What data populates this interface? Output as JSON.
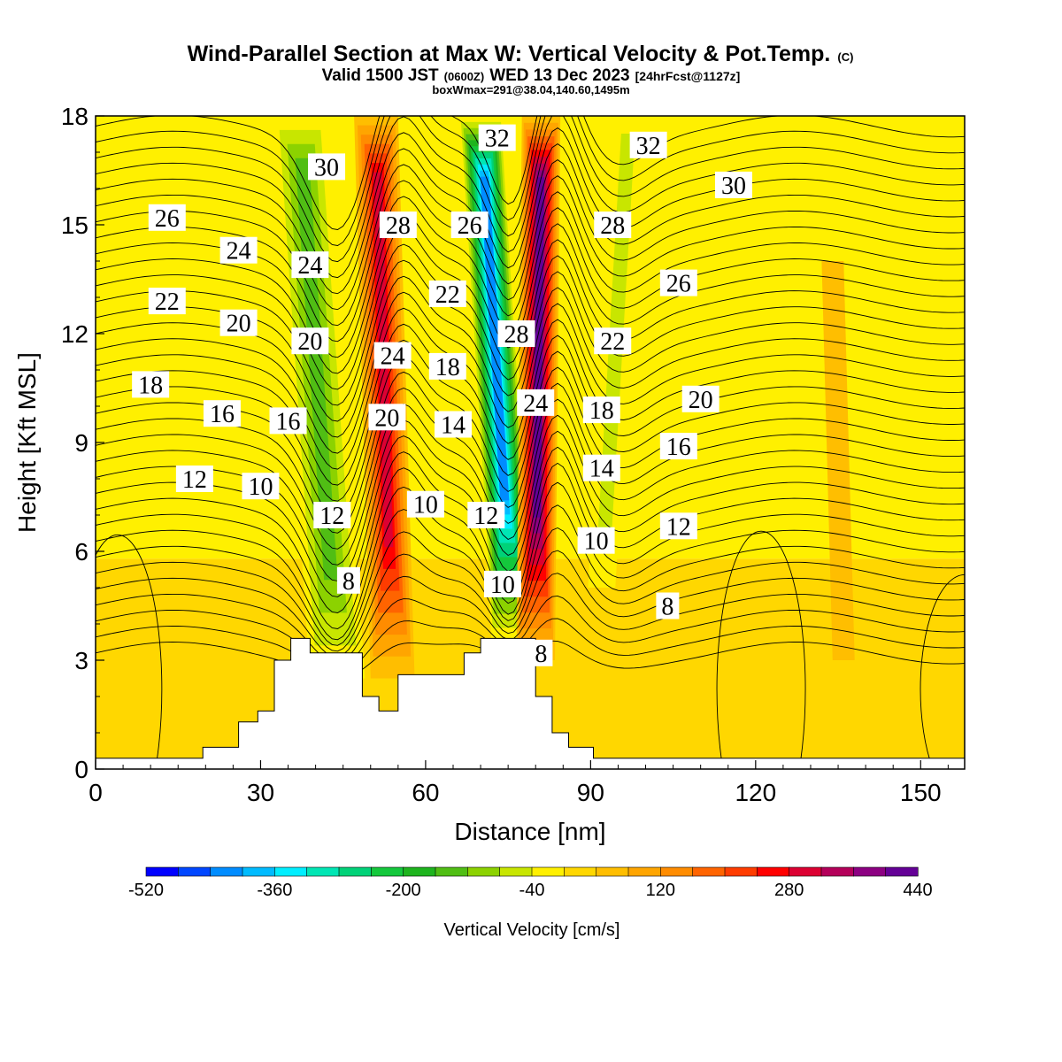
{
  "header": {
    "title_main": "Wind-Parallel Section at Max W: Vertical Velocity & Pot.Temp.",
    "title_mark": "(C)",
    "subtitle_a": "Valid 1500 JST",
    "subtitle_b": "(0600Z)",
    "subtitle_c": "WED 13 Dec 2023",
    "subtitle_d": "[24hrFcst@1127z]",
    "subtitle_line3": "boxWmax=291@38.04,140.60,1495m"
  },
  "chart_data": {
    "type": "heatmap",
    "title": "Wind-Parallel Section at Max W: Vertical Velocity & Pot.Temp.",
    "xlabel": "Distance [nm]",
    "ylabel": "Height [Kft MSL]",
    "xlim": [
      0,
      158
    ],
    "ylim": [
      0,
      18
    ],
    "x_ticks": [
      "0",
      "30",
      "60",
      "90",
      "120",
      "150"
    ],
    "y_ticks": [
      "0",
      "3",
      "6",
      "9",
      "12",
      "15",
      "18"
    ],
    "x_tick_values": [
      0,
      30,
      60,
      90,
      120,
      150
    ],
    "y_tick_values": [
      0,
      3,
      6,
      9,
      12,
      15,
      18
    ],
    "grid": false,
    "colorbar": {
      "label": "Vertical Velocity [cm/s]",
      "tick_labels": [
        "-520",
        "-360",
        "-200",
        "-40",
        "120",
        "280",
        "440"
      ],
      "tick_values": [
        -520,
        -360,
        -200,
        -40,
        120,
        280,
        440
      ],
      "min": -520,
      "max": 440,
      "step": 40,
      "colors": [
        "#0000ff",
        "#0046ff",
        "#008cff",
        "#00bbff",
        "#00eeff",
        "#00e6b4",
        "#00d278",
        "#14c83c",
        "#1eb41e",
        "#50be14",
        "#8cd200",
        "#c8e600",
        "#fff000",
        "#ffd700",
        "#ffbe00",
        "#ffa500",
        "#ff8c00",
        "#ff6400",
        "#ff3c00",
        "#ff0000",
        "#dc0032",
        "#b4005a",
        "#8c0082",
        "#640096"
      ]
    },
    "terrain_profile": {
      "x": [
        0,
        19.5,
        19.5,
        26,
        26,
        29.5,
        29.5,
        32.5,
        32.5,
        35.5,
        35.5,
        39,
        39,
        48.5,
        48.5,
        51.5,
        51.5,
        55,
        55,
        67,
        67,
        70,
        70,
        80,
        80,
        83,
        83,
        86,
        86,
        90.5,
        90.5,
        158
      ],
      "height_kft": [
        0.3,
        0.3,
        0.6,
        0.6,
        1.3,
        1.3,
        1.6,
        1.6,
        3.0,
        3.0,
        3.6,
        3.6,
        3.2,
        3.2,
        2.0,
        2.0,
        1.6,
        1.6,
        2.6,
        2.6,
        3.2,
        3.2,
        3.6,
        3.6,
        2.0,
        2.0,
        1.0,
        1.0,
        0.6,
        0.6,
        0.3,
        0.3
      ]
    },
    "w_background": [
      {
        "x": [
          0,
          158
        ],
        "y": [
          0,
          5.8
        ],
        "value_cm_s": 20
      },
      {
        "x": [
          0,
          158
        ],
        "y": [
          5.8,
          18
        ],
        "value_cm_s": -10
      }
    ],
    "w_bands": [
      {
        "band": "downdraft-1",
        "base": [
          44,
          2.5
        ],
        "top": [
          37,
          18
        ],
        "width_nm": 10,
        "peak_cm_s": -190
      },
      {
        "band": "updraft-1",
        "base": [
          54,
          2.5
        ],
        "top": [
          51,
          18
        ],
        "width_nm": 8,
        "peak_cm_s": 300
      },
      {
        "band": "downdraft-2",
        "base": [
          76,
          3.5
        ],
        "top": [
          70,
          18
        ],
        "width_nm": 8,
        "peak_cm_s": -440
      },
      {
        "band": "updraft-2",
        "base": [
          80,
          3.0
        ],
        "top": [
          81,
          18
        ],
        "width_nm": 7,
        "peak_cm_s": 400
      },
      {
        "band": "downdraft-3",
        "base": [
          92,
          5
        ],
        "top": [
          97,
          18
        ],
        "width_nm": 5,
        "peak_cm_s": -110
      },
      {
        "band": "updraft-3",
        "base": [
          136,
          3
        ],
        "top": [
          134,
          14
        ],
        "width_nm": 4,
        "peak_cm_s": 60
      }
    ],
    "theta_contour_labels": [
      {
        "text": "30",
        "x": 42,
        "y": 16.6
      },
      {
        "text": "28",
        "x": 55,
        "y": 15.0
      },
      {
        "text": "32",
        "x": 73,
        "y": 17.4
      },
      {
        "text": "26",
        "x": 68,
        "y": 15.0
      },
      {
        "text": "32",
        "x": 100.5,
        "y": 17.2
      },
      {
        "text": "30",
        "x": 116,
        "y": 16.1
      },
      {
        "text": "28",
        "x": 94,
        "y": 15.0
      },
      {
        "text": "26",
        "x": 106,
        "y": 13.4
      },
      {
        "text": "26",
        "x": 13,
        "y": 15.2
      },
      {
        "text": "24",
        "x": 26,
        "y": 14.3
      },
      {
        "text": "24",
        "x": 39,
        "y": 13.9
      },
      {
        "text": "22",
        "x": 64,
        "y": 13.1
      },
      {
        "text": "22",
        "x": 13,
        "y": 12.9
      },
      {
        "text": "20",
        "x": 26,
        "y": 12.3
      },
      {
        "text": "20",
        "x": 39,
        "y": 11.8
      },
      {
        "text": "24",
        "x": 54,
        "y": 11.4
      },
      {
        "text": "28",
        "x": 76.5,
        "y": 12.0
      },
      {
        "text": "22",
        "x": 94,
        "y": 11.8
      },
      {
        "text": "18",
        "x": 64,
        "y": 11.1
      },
      {
        "text": "18",
        "x": 10,
        "y": 10.6
      },
      {
        "text": "24",
        "x": 80,
        "y": 10.1
      },
      {
        "text": "20",
        "x": 110,
        "y": 10.2
      },
      {
        "text": "16",
        "x": 23,
        "y": 9.8
      },
      {
        "text": "16",
        "x": 35,
        "y": 9.6
      },
      {
        "text": "20",
        "x": 53,
        "y": 9.7
      },
      {
        "text": "14",
        "x": 65,
        "y": 9.5
      },
      {
        "text": "18",
        "x": 92,
        "y": 9.9
      },
      {
        "text": "16",
        "x": 106,
        "y": 8.9
      },
      {
        "text": "12",
        "x": 18,
        "y": 8.0
      },
      {
        "text": "10",
        "x": 30,
        "y": 7.8
      },
      {
        "text": "14",
        "x": 92,
        "y": 8.3
      },
      {
        "text": "12",
        "x": 43,
        "y": 7.0
      },
      {
        "text": "10",
        "x": 60,
        "y": 7.3
      },
      {
        "text": "12",
        "x": 71,
        "y": 7.0
      },
      {
        "text": "10",
        "x": 91,
        "y": 6.3
      },
      {
        "text": "12",
        "x": 106,
        "y": 6.7
      },
      {
        "text": "8",
        "x": 46,
        "y": 5.2
      },
      {
        "text": "10",
        "x": 74,
        "y": 5.1
      },
      {
        "text": "8",
        "x": 104,
        "y": 4.5
      },
      {
        "text": "8",
        "x": 81,
        "y": 3.2
      }
    ]
  }
}
